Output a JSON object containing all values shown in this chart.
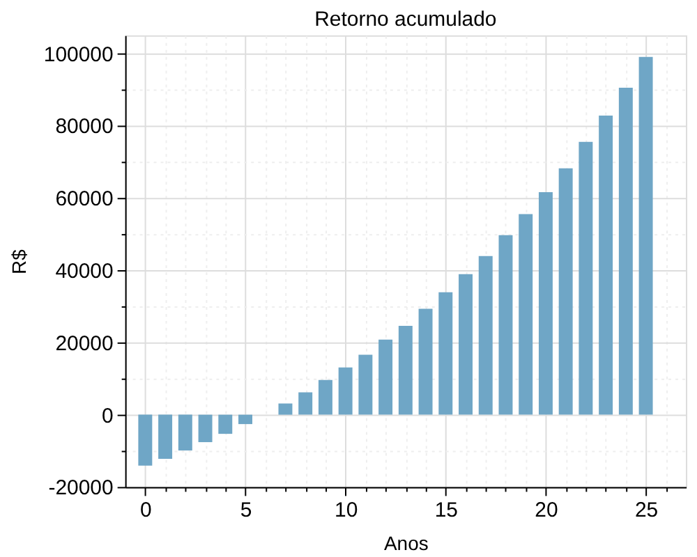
{
  "chart_data": {
    "type": "bar",
    "title": "Retorno acumulado",
    "xlabel": "Anos",
    "ylabel": "R$",
    "x": [
      0,
      1,
      2,
      3,
      4,
      5,
      6,
      7,
      8,
      9,
      10,
      11,
      12,
      13,
      14,
      15,
      16,
      17,
      18,
      19,
      20,
      21,
      22,
      23,
      24,
      25
    ],
    "values": [
      -14100,
      -12200,
      -9900,
      -7600,
      -5300,
      -2600,
      null,
      3100,
      6200,
      9600,
      13100,
      16600,
      20800,
      24600,
      29300,
      33900,
      38900,
      43900,
      49700,
      55500,
      61600,
      68200,
      75500,
      82800,
      90500,
      99000
    ],
    "color": "#6fa6c6",
    "xlim": [
      -1,
      27
    ],
    "xticks": [
      0,
      {
        "value": 1,
        "label": null
      },
      {
        "value": 2,
        "label": null
      },
      {
        "value": 3,
        "label": null
      },
      {
        "value": 4,
        "label": null
      },
      5,
      {
        "value": 6,
        "label": null
      },
      {
        "value": 7,
        "label": null
      },
      {
        "value": 8,
        "label": null
      },
      {
        "value": 9,
        "label": null
      },
      10,
      {
        "value": 11,
        "label": null
      },
      {
        "value": 12,
        "label": null
      },
      {
        "value": 13,
        "label": null
      },
      {
        "value": 14,
        "label": null
      },
      15,
      {
        "value": 16,
        "label": null
      },
      {
        "value": 17,
        "label": null
      },
      {
        "value": 18,
        "label": null
      },
      {
        "value": 19,
        "label": null
      },
      20,
      {
        "value": 21,
        "label": null
      },
      {
        "value": 22,
        "label": null
      },
      {
        "value": 23,
        "label": null
      },
      {
        "value": 24,
        "label": null
      },
      25,
      {
        "value": 26,
        "label": null
      }
    ],
    "ylim": [
      -20000,
      105000
    ],
    "yticks": [
      -20000,
      {
        "value": -10000,
        "label": null
      },
      0,
      {
        "value": 10000,
        "label": null
      },
      20000,
      {
        "value": 30000,
        "label": null
      },
      40000,
      {
        "value": 50000,
        "label": null
      },
      60000,
      {
        "value": 70000,
        "label": null
      },
      80000,
      {
        "value": 90000,
        "label": null
      },
      100000
    ],
    "grid": true
  }
}
